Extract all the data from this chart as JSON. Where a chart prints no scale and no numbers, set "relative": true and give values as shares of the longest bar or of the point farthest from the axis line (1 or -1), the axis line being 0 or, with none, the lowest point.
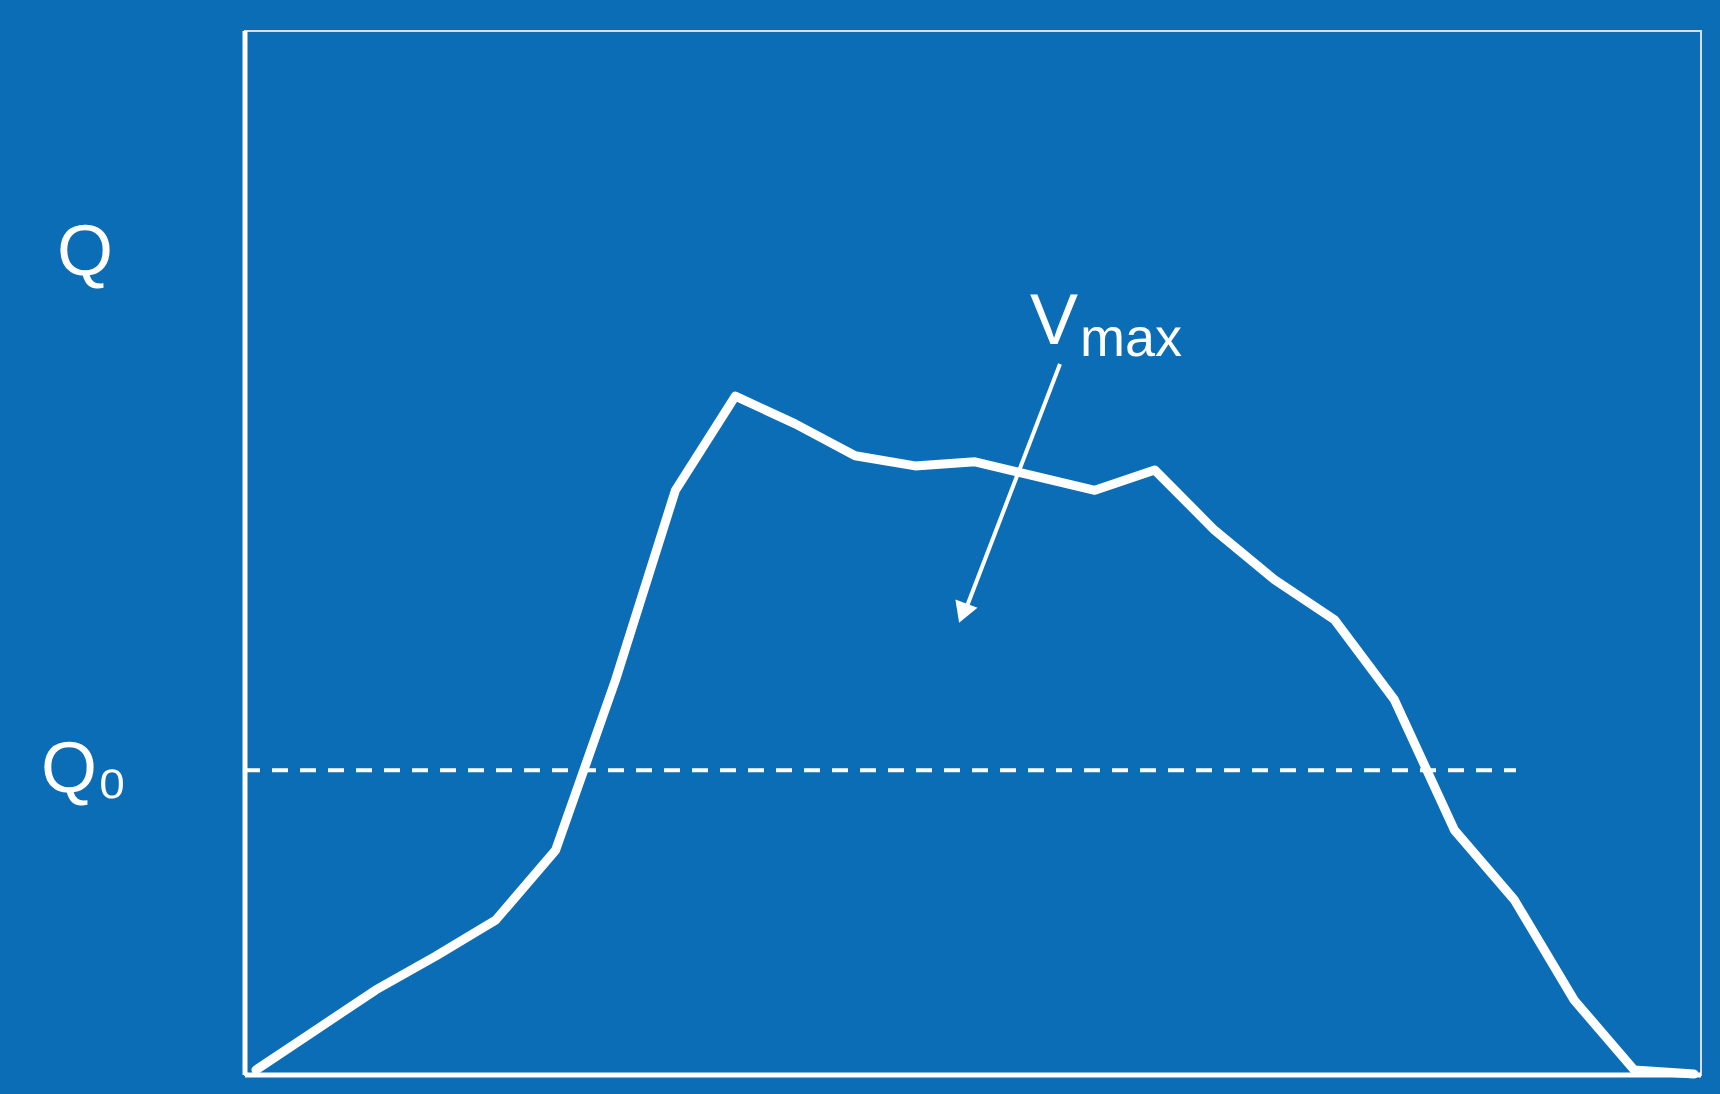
{
  "chart_data": {
    "type": "line",
    "relative": true,
    "ylabel": "Q",
    "categories": [
      null,
      null,
      null,
      null,
      null,
      null,
      null,
      null,
      null,
      null,
      null,
      null,
      null,
      null,
      null,
      null,
      null,
      null,
      null,
      null,
      null,
      null,
      null,
      null,
      null
    ],
    "series": [
      {
        "color": "#ffffff",
        "values": [
          0.006,
          0.065,
          0.124,
          0.174,
          0.227,
          0.33,
          0.581,
          0.861,
          1.0,
          0.959,
          0.912,
          0.897,
          0.903,
          0.882,
          0.861,
          0.891,
          0.802,
          0.729,
          0.67,
          0.552,
          0.36,
          0.257,
          0.109,
          0.006,
          0.0
        ]
      }
    ],
    "ref_lines": [
      {
        "axis": "y",
        "value": 0.448,
        "label": "Q₀",
        "color": "#ffffff",
        "line_style": "dashed"
      }
    ],
    "annotations": [
      "V$_{max}$"
    ],
    "grid": false,
    "marker": "none",
    "line_style": "solid"
  }
}
